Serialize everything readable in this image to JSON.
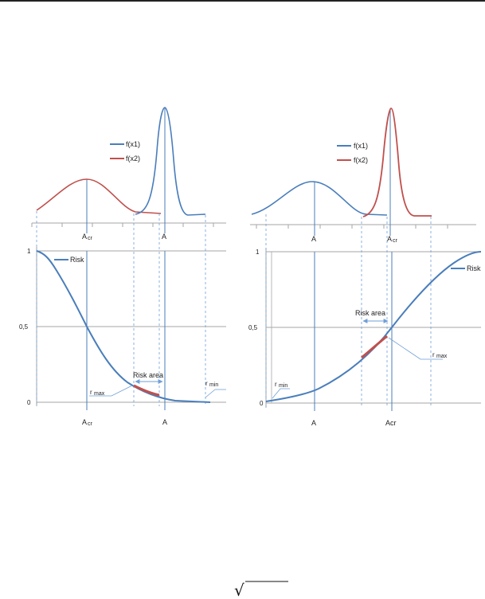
{
  "colors": {
    "blue": "#4a7ebb",
    "red": "#c0504d",
    "grid": "#a6a6a6",
    "dash": "#6f9fd8",
    "text": "#222222"
  },
  "left": {
    "legend": [
      "f(x1)",
      "f(x2)"
    ],
    "dist_axis_labels": {
      "acr_main": "A",
      "acr_sub": "cr",
      "a": "A"
    },
    "risk_legend": "Risk",
    "y_ticks": [
      "1",
      "0,5",
      "0"
    ],
    "risk_area_label": "Risk area",
    "rmax_main": "r",
    "rmax_sub": "max",
    "rmin_main": "r",
    "rmin_sub": "min",
    "x_axis_labels": {
      "acr_main": "A",
      "acr_sub": "cr",
      "a": "A"
    }
  },
  "right": {
    "legend": [
      "f(x1)",
      "f(x2)"
    ],
    "dist_axis_labels": {
      "a": "A",
      "acr_main": "A",
      "acr_sub": "cr"
    },
    "risk_legend": "Risk",
    "y_ticks": [
      "1",
      "0,5",
      "0"
    ],
    "risk_area_label": "Risk area",
    "rmax_main": "r",
    "rmax_sub": "max",
    "rmin_main": "r",
    "rmin_sub": "min",
    "x_axis_labels": {
      "a": "A",
      "acr": "Acr"
    }
  },
  "formula": {
    "radical": "√"
  }
}
